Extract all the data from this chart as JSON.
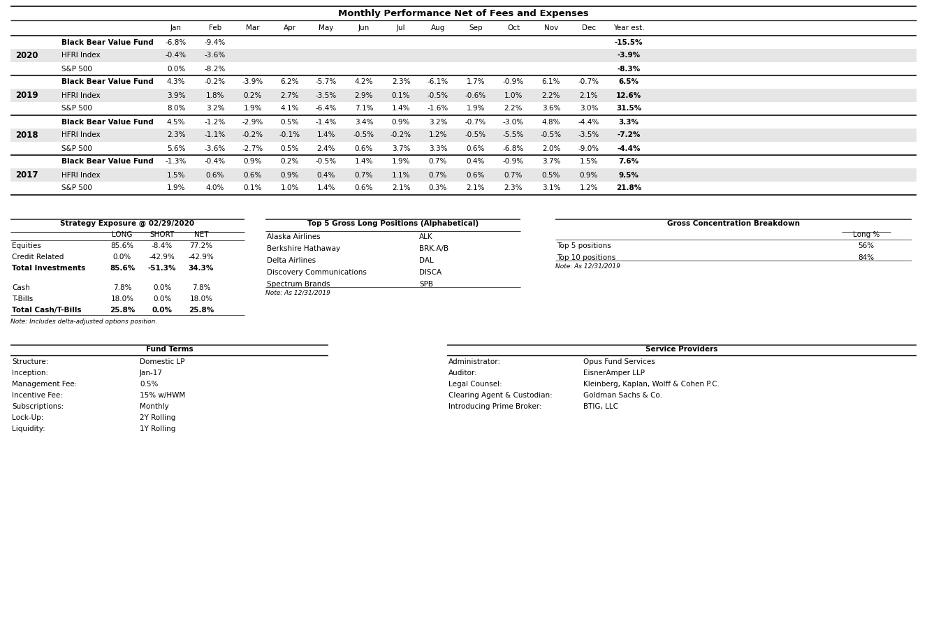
{
  "title": "Monthly Performance Net of Fees and Expenses",
  "perf_data": [
    {
      "year": "2020",
      "rows": [
        {
          "label": "Black Bear Value Fund",
          "bold": true,
          "shaded": false,
          "values": [
            "-6.8%",
            "-9.4%",
            "",
            "",
            "",
            "",
            "",
            "",
            "",
            "",
            "",
            "",
            "-15.5%"
          ]
        },
        {
          "label": "HFRI Index",
          "bold": false,
          "shaded": true,
          "values": [
            "-0.4%",
            "-3.6%",
            "",
            "",
            "",
            "",
            "",
            "",
            "",
            "",
            "",
            "",
            "-3.9%"
          ]
        },
        {
          "label": "S&P 500",
          "bold": false,
          "shaded": false,
          "values": [
            "0.0%",
            "-8.2%",
            "",
            "",
            "",
            "",
            "",
            "",
            "",
            "",
            "",
            "",
            "-8.3%"
          ]
        }
      ]
    },
    {
      "year": "2019",
      "rows": [
        {
          "label": "Black Bear Value Fund",
          "bold": true,
          "shaded": false,
          "values": [
            "4.3%",
            "-0.2%",
            "-3.9%",
            "6.2%",
            "-5.7%",
            "4.2%",
            "2.3%",
            "-6.1%",
            "1.7%",
            "-0.9%",
            "6.1%",
            "-0.7%",
            "6.5%"
          ]
        },
        {
          "label": "HFRI Index",
          "bold": false,
          "shaded": true,
          "values": [
            "3.9%",
            "1.8%",
            "0.2%",
            "2.7%",
            "-3.5%",
            "2.9%",
            "0.1%",
            "-0.5%",
            "-0.6%",
            "1.0%",
            "2.2%",
            "2.1%",
            "12.6%"
          ]
        },
        {
          "label": "S&P 500",
          "bold": false,
          "shaded": false,
          "values": [
            "8.0%",
            "3.2%",
            "1.9%",
            "4.1%",
            "-6.4%",
            "7.1%",
            "1.4%",
            "-1.6%",
            "1.9%",
            "2.2%",
            "3.6%",
            "3.0%",
            "31.5%"
          ]
        }
      ]
    },
    {
      "year": "2018",
      "rows": [
        {
          "label": "Black Bear Value Fund",
          "bold": true,
          "shaded": false,
          "values": [
            "4.5%",
            "-1.2%",
            "-2.9%",
            "0.5%",
            "-1.4%",
            "3.4%",
            "0.9%",
            "3.2%",
            "-0.7%",
            "-3.0%",
            "4.8%",
            "-4.4%",
            "3.3%"
          ]
        },
        {
          "label": "HFRI Index",
          "bold": false,
          "shaded": true,
          "values": [
            "2.3%",
            "-1.1%",
            "-0.2%",
            "-0.1%",
            "1.4%",
            "-0.5%",
            "-0.2%",
            "1.2%",
            "-0.5%",
            "-5.5%",
            "-0.5%",
            "-3.5%",
            "-7.2%"
          ]
        },
        {
          "label": "S&P 500",
          "bold": false,
          "shaded": false,
          "values": [
            "5.6%",
            "-3.6%",
            "-2.7%",
            "0.5%",
            "2.4%",
            "0.6%",
            "3.7%",
            "3.3%",
            "0.6%",
            "-6.8%",
            "2.0%",
            "-9.0%",
            "-4.4%"
          ]
        }
      ]
    },
    {
      "year": "2017",
      "rows": [
        {
          "label": "Black Bear Value Fund",
          "bold": true,
          "shaded": false,
          "values": [
            "-1.3%",
            "-0.4%",
            "0.9%",
            "0.2%",
            "-0.5%",
            "1.4%",
            "1.9%",
            "0.7%",
            "0.4%",
            "-0.9%",
            "3.7%",
            "1.5%",
            "7.6%"
          ]
        },
        {
          "label": "HFRI Index",
          "bold": false,
          "shaded": true,
          "values": [
            "1.5%",
            "0.6%",
            "0.6%",
            "0.9%",
            "0.4%",
            "0.7%",
            "1.1%",
            "0.7%",
            "0.6%",
            "0.7%",
            "0.5%",
            "0.9%",
            "9.5%"
          ]
        },
        {
          "label": "S&P 500",
          "bold": false,
          "shaded": false,
          "values": [
            "1.9%",
            "4.0%",
            "0.1%",
            "1.0%",
            "1.4%",
            "0.6%",
            "2.1%",
            "0.3%",
            "2.1%",
            "2.3%",
            "3.1%",
            "1.2%",
            "21.8%"
          ]
        }
      ]
    }
  ],
  "strategy_title": "Strategy Exposure @ 02/29/2020",
  "strategy_col_headers": [
    "LONG",
    "SHORT",
    "NET"
  ],
  "strategy_rows": [
    {
      "label": "Equities",
      "bold": false,
      "vals": [
        "85.6%",
        "-8.4%",
        "77.2%"
      ]
    },
    {
      "label": "Credit Related",
      "bold": false,
      "vals": [
        "0.0%",
        "-42.9%",
        "-42.9%"
      ]
    },
    {
      "label": "Total Investments",
      "bold": true,
      "vals": [
        "85.6%",
        "-51.3%",
        "34.3%"
      ]
    },
    {
      "label": "",
      "bold": false,
      "vals": [
        "",
        "",
        ""
      ]
    },
    {
      "label": "Cash",
      "bold": false,
      "vals": [
        "7.8%",
        "0.0%",
        "7.8%"
      ]
    },
    {
      "label": "T-Bills",
      "bold": false,
      "vals": [
        "18.0%",
        "0.0%",
        "18.0%"
      ]
    },
    {
      "label": "Total Cash/T-Bills",
      "bold": true,
      "vals": [
        "25.8%",
        "0.0%",
        "25.8%"
      ]
    }
  ],
  "strategy_note": "Note: Includes delta-adjusted options position.",
  "long_title": "Top 5 Gross Long Positions (Alphabetical)",
  "long_positions": [
    [
      "Alaska Airlines",
      "ALK"
    ],
    [
      "Berkshire Hathaway",
      "BRK.A/B"
    ],
    [
      "Delta Airlines",
      "DAL"
    ],
    [
      "Discovery Communications",
      "DISCA"
    ],
    [
      "Spectrum Brands",
      "SPB"
    ]
  ],
  "long_note": "Note: As 12/31/2019",
  "conc_title": "Gross Concentration Breakdown",
  "conc_header": "Long %",
  "conc_rows": [
    [
      "Top 5 positions",
      "56%"
    ],
    [
      "Top 10 positions",
      "84%"
    ]
  ],
  "conc_note": "Note: As 12/31/2019",
  "fund_title": "Fund Terms",
  "fund_rows": [
    [
      "Structure:",
      "Domestic LP"
    ],
    [
      "Inception:",
      "Jan-17"
    ],
    [
      "Management Fee:",
      "0.5%"
    ],
    [
      "Incentive Fee:",
      "15% w/HWM"
    ],
    [
      "Subscriptions:",
      "Monthly"
    ],
    [
      "Lock-Up:",
      "2Y Rolling"
    ],
    [
      "Liquidity:",
      "1Y Rolling"
    ]
  ],
  "service_title": "Service Providers",
  "service_rows": [
    [
      "Administrator:",
      "Opus Fund Services"
    ],
    [
      "Auditor:",
      "EisnerAmper LLP"
    ],
    [
      "Legal Counsel:",
      "Kleinberg, Kaplan, Wolff & Cohen P.C."
    ],
    [
      "Clearing Agent & Custodian:",
      "Goldman Sachs & Co."
    ],
    [
      "Introducing Prime Broker:",
      "BTIG, LLC"
    ]
  ],
  "bg_color": "#ffffff",
  "shaded_color": "#e6e6e6",
  "text_color": "#000000"
}
